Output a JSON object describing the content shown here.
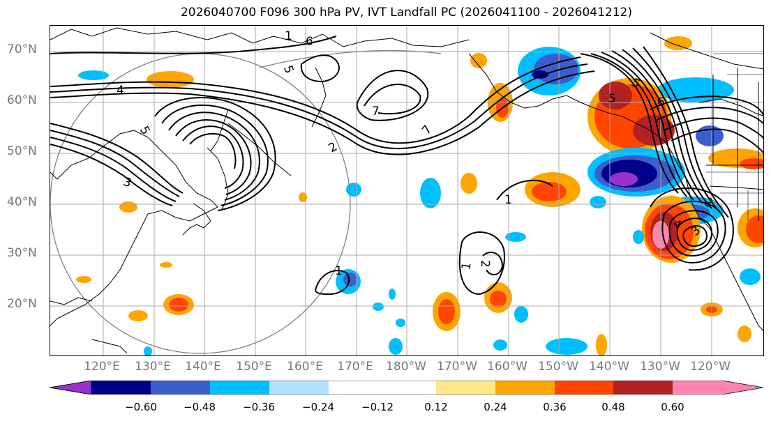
{
  "title": "2026040700 F096 300 hPa PV, IVT Landfall PC (2026041100 - 2026041212)",
  "lat_labels": [
    "70°N",
    "60°N",
    "50°N",
    "40°N",
    "30°N",
    "20°N"
  ],
  "lon_labels": [
    "120°E",
    "130°E",
    "140°E",
    "150°E",
    "160°E",
    "170°E",
    "180°W",
    "170°W",
    "160°W",
    "150°W",
    "140°W",
    "130°W",
    "120°W"
  ],
  "contour_labels": [
    "1",
    "6",
    "5",
    "4",
    "7",
    "5",
    "5",
    "3",
    "7",
    "1",
    "1",
    "2",
    "3",
    "1",
    "2",
    "6",
    "4",
    "5",
    "2"
  ],
  "colorbar": {
    "tick_labels": [
      "−0.60",
      "−0.48",
      "−0.36",
      "−0.24",
      "−0.12",
      "0.12",
      "0.24",
      "0.36",
      "0.48",
      "0.60"
    ],
    "colors": [
      "#9932cc",
      "#00008b",
      "#3a5fcd",
      "#00bfff",
      "#b0e2ff",
      "#ffffff",
      "#ffe88a",
      "#ffa500",
      "#ff4500",
      "#b22222",
      "#ff85b0"
    ]
  }
}
